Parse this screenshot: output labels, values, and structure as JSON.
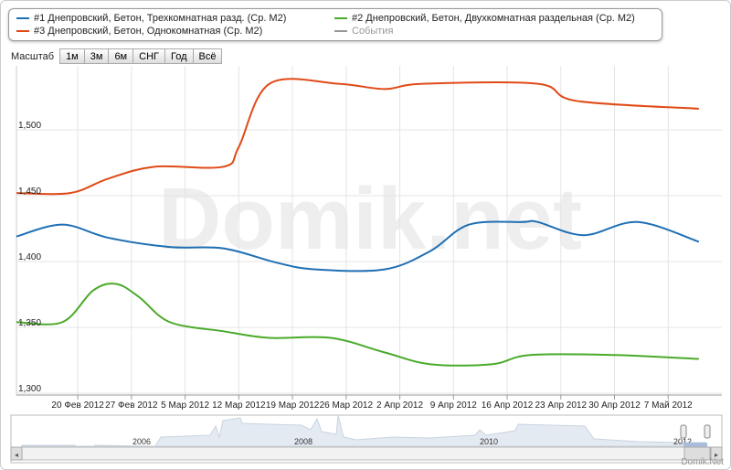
{
  "legend": [
    {
      "label": "#1 Днепровский, Бетон, Трехкомнатная разд. (Ср. М2)",
      "color": "#1f6fb4"
    },
    {
      "label": "#2 Днепровский, Бетон, Двухкомнатная раздельная (Ср. М2)",
      "color": "#4aaa2a"
    },
    {
      "label": "#3 Днепровский, Бетон, Однокомнатная (Ср. М2)",
      "color": "#e04a17"
    },
    {
      "label": "События",
      "color": "#999999"
    }
  ],
  "scale": {
    "label": "Масштаб",
    "buttons": [
      "1м",
      "3м",
      "6м",
      "СНГ",
      "Год",
      "Всё"
    ]
  },
  "watermark": "Domik.net",
  "brand": "Domik.Net",
  "navigator": {
    "years": [
      "2006",
      "2008",
      "2010",
      "2012"
    ]
  },
  "chart_data": {
    "type": "line",
    "xrange": [
      "2012-02-12",
      "2012-05-14"
    ],
    "ylim": [
      1300,
      1550
    ],
    "yticks": [
      1300,
      1350,
      1400,
      1450,
      1500
    ],
    "ytick_labels": [
      "1,300",
      "1,350",
      "1,400",
      "1,450",
      "1,500"
    ],
    "xticks": [
      "2012-02-20",
      "2012-02-27",
      "2012-03-05",
      "2012-03-12",
      "2012-03-19",
      "2012-03-26",
      "2012-04-02",
      "2012-04-09",
      "2012-04-16",
      "2012-04-23",
      "2012-04-30",
      "2012-05-07"
    ],
    "xtick_labels": [
      "20 Фев 2012",
      "27 Фев 2012",
      "5 Мар 2012",
      "12 Мар 2012",
      "19 Мар 2012",
      "26 Мар 2012",
      "2 Апр 2012",
      "9 Апр 2012",
      "16 Апр 2012",
      "23 Апр 2012",
      "30 Апр 2012",
      "7 Май 2012"
    ],
    "series": [
      {
        "name": "#1",
        "color": "#1f6fb4",
        "points": [
          [
            "2012-02-12",
            1419
          ],
          [
            "2012-02-18",
            1428
          ],
          [
            "2012-02-24",
            1418
          ],
          [
            "2012-03-03",
            1411
          ],
          [
            "2012-03-10",
            1410
          ],
          [
            "2012-03-17",
            1399
          ],
          [
            "2012-03-22",
            1394
          ],
          [
            "2012-03-31",
            1394
          ],
          [
            "2012-04-06",
            1408
          ],
          [
            "2012-04-11",
            1428
          ],
          [
            "2012-04-18",
            1430
          ],
          [
            "2012-04-20",
            1430
          ],
          [
            "2012-04-26",
            1420
          ],
          [
            "2012-05-03",
            1430
          ],
          [
            "2012-05-11",
            1415
          ]
        ]
      },
      {
        "name": "#2",
        "color": "#4aaa2a",
        "points": [
          [
            "2012-02-12",
            1354
          ],
          [
            "2012-02-18",
            1354
          ],
          [
            "2012-02-22",
            1378
          ],
          [
            "2012-02-25",
            1383
          ],
          [
            "2012-02-28",
            1373
          ],
          [
            "2012-03-03",
            1354
          ],
          [
            "2012-03-10",
            1347
          ],
          [
            "2012-03-16",
            1342
          ],
          [
            "2012-03-24",
            1342
          ],
          [
            "2012-03-31",
            1331
          ],
          [
            "2012-04-06",
            1322
          ],
          [
            "2012-04-14",
            1322
          ],
          [
            "2012-04-19",
            1329
          ],
          [
            "2012-04-30",
            1329
          ],
          [
            "2012-05-11",
            1326
          ]
        ]
      },
      {
        "name": "#3",
        "color": "#e04a17",
        "points": [
          [
            "2012-02-12",
            1452
          ],
          [
            "2012-02-19",
            1452
          ],
          [
            "2012-02-24",
            1463
          ],
          [
            "2012-03-01",
            1472
          ],
          [
            "2012-03-10",
            1472
          ],
          [
            "2012-03-12",
            1487
          ],
          [
            "2012-03-16",
            1535
          ],
          [
            "2012-03-25",
            1535
          ],
          [
            "2012-03-31",
            1531
          ],
          [
            "2012-04-05",
            1535
          ],
          [
            "2012-04-20",
            1535
          ],
          [
            "2012-04-25",
            1522
          ],
          [
            "2012-05-11",
            1516
          ]
        ]
      }
    ]
  }
}
